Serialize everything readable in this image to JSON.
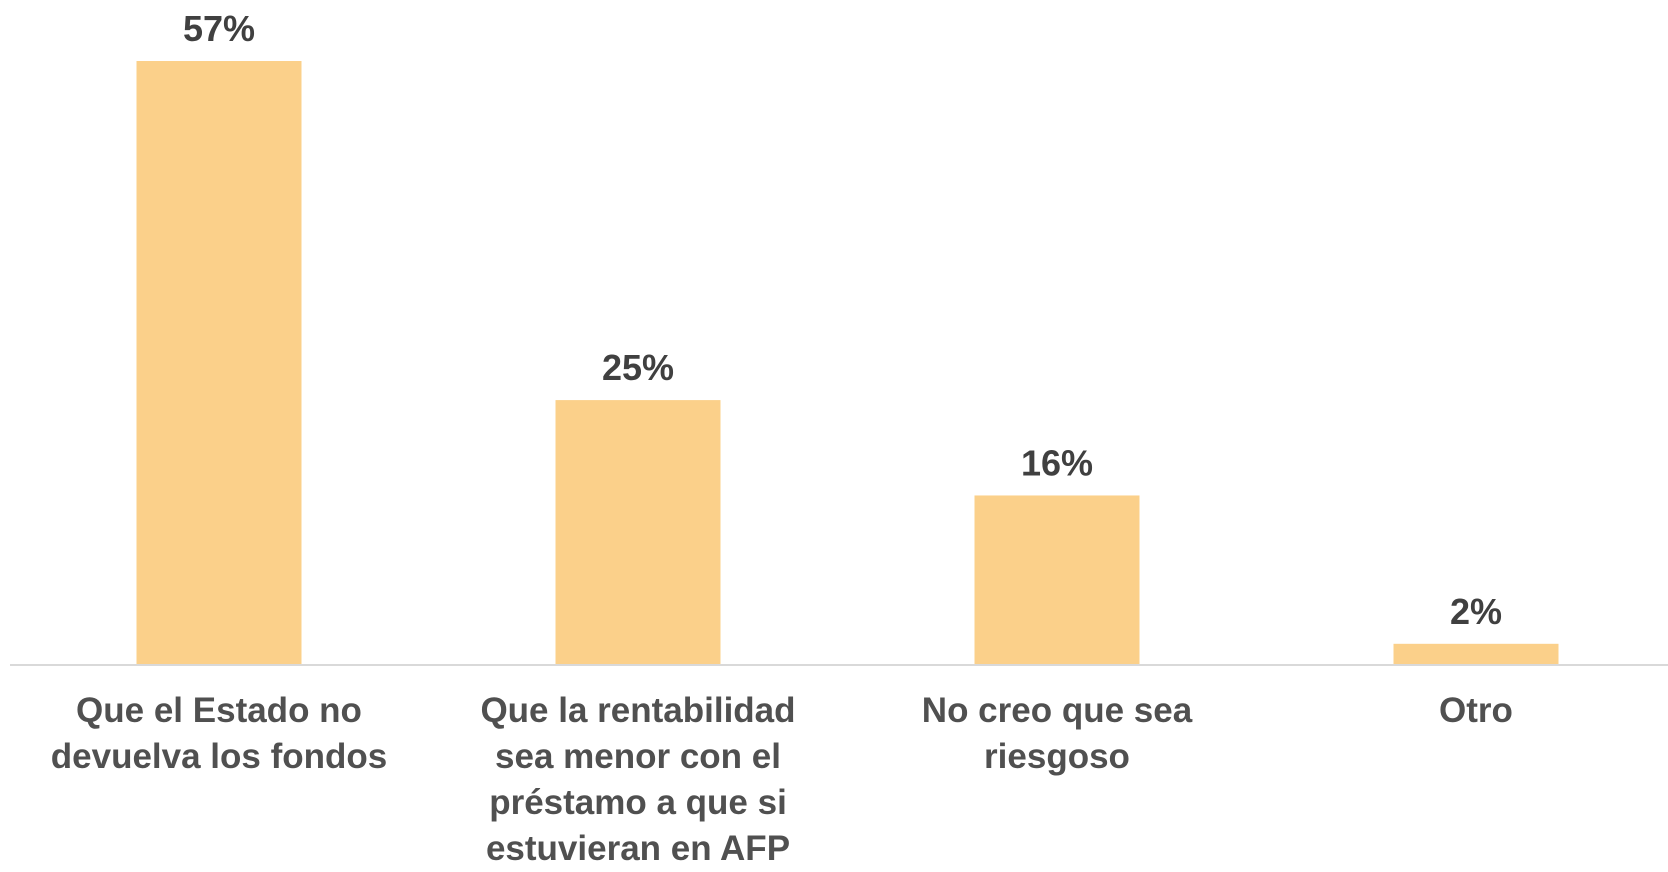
{
  "chart_data": {
    "type": "bar",
    "categories": [
      [
        "Que el Estado no",
        "devuelva los fondos"
      ],
      [
        "Que la rentabilidad",
        "sea menor con el",
        "préstamo a que si",
        "estuvieran en AFP"
      ],
      [
        "No creo que sea",
        "riesgoso"
      ],
      [
        "Otro"
      ]
    ],
    "values": [
      57,
      25,
      16,
      2
    ],
    "value_labels": [
      "57%",
      "25%",
      "16%",
      "2%"
    ],
    "bar_color": "#FBD08A",
    "axis_color": "#D9D9D9",
    "label_color": "#404040",
    "ylim": [
      0,
      57
    ],
    "grid": false,
    "legend": "none"
  }
}
